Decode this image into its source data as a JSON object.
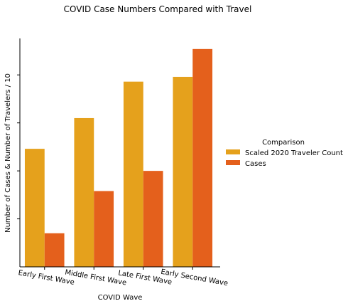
{
  "chart_data": {
    "type": "bar",
    "title": "COVID Case Numbers Compared with Travel",
    "xlabel": "COVID Wave",
    "ylabel": "Number of Cases & Number of Travelers / 10",
    "categories": [
      "Early First Wave",
      "Middle First Wave",
      "Late First Wave",
      "Early Second Wave"
    ],
    "series": [
      {
        "name": "Scaled 2020 Traveler Count",
        "color": "#e5a11c",
        "values": [
          123000,
          155000,
          193000,
          198000
        ]
      },
      {
        "name": "Cases",
        "color": "#e4601c",
        "values": [
          35000,
          79000,
          100000,
          227000
        ]
      }
    ],
    "ylim": [
      0,
      238000
    ],
    "y_ticks": [
      50000,
      100000,
      150000,
      200000
    ],
    "y_tick_labels_visible": false,
    "grid": false,
    "legend": {
      "title": "Comparison",
      "placement": "right"
    }
  }
}
